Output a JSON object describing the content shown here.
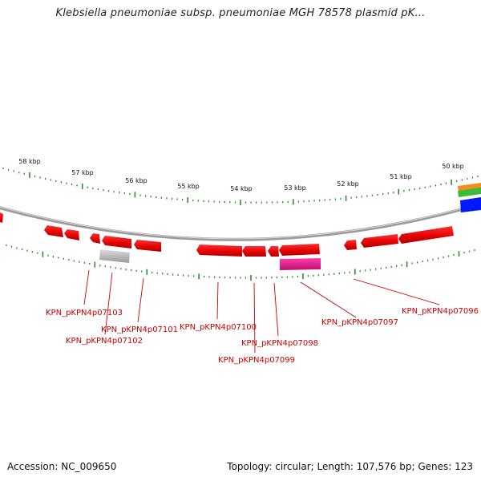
{
  "title": "Klebsiella pneumoniae subsp. pneumoniae MGH 78578 plasmid pK...",
  "accession_text": "Accession: NC_009650",
  "summary_text": "Topology: circular; Length: 107,576 bp; Genes: 123",
  "colors": {
    "backbone": "#8a8a8a",
    "tick": "#2e8b2e",
    "cds_forward": "#ff0000",
    "cds_reverse": "#ff0000",
    "gray_feature": "#c0c0c0",
    "magenta_feature": "#e8168c",
    "label": "#cc0000",
    "legend_orange": "#f0901c",
    "legend_green": "#3cba3c",
    "legend_blue": "#0018ff"
  },
  "kbp_labels": [
    "58 kbp",
    "57 kbp",
    "56 kbp",
    "55 kbp",
    "54 kbp",
    "53 kbp",
    "52 kbp",
    "51 kbp",
    "50 kbp"
  ],
  "gene_labels": [
    "KPN_pKPN4p07103",
    "KPN_pKPN4p07102",
    "KPN_pKPN4p07101",
    "KPN_pKPN4p07100",
    "KPN_pKPN4p07099",
    "KPN_pKPN4p07098",
    "KPN_pKPN4p07097",
    "KPN_pKPN4p07096"
  ]
}
